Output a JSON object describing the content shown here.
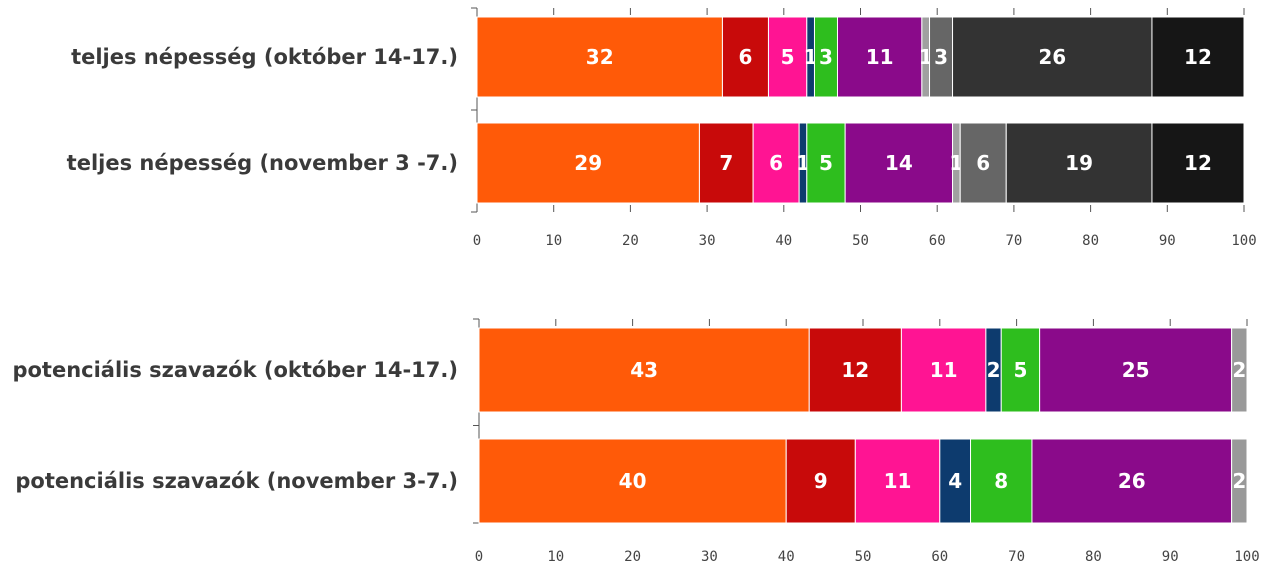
{
  "chart_data": [
    {
      "type": "bar",
      "orientation": "horizontal",
      "stacked": true,
      "xlim": [
        0,
        100
      ],
      "x_ticks": [
        "0",
        "10",
        "20",
        "30",
        "40",
        "50",
        "60",
        "70",
        "80",
        "90",
        "100"
      ],
      "categories": [
        "teljes népesség (október 14-17.)",
        "teljes népesség (november 3 -7.)"
      ],
      "segment_colors": [
        "#ff5a08",
        "#c80a0a",
        "#ff1493",
        "#0d3b6e",
        "#2ebe1e",
        "#8a0a8a",
        "#a0a0a0",
        "#666666",
        "#333333",
        "#161616"
      ],
      "rows": [
        {
          "values": [
            32,
            6,
            5,
            1,
            3,
            11,
            1,
            3,
            26,
            12
          ],
          "labels": [
            "32",
            "6",
            "5",
            "1",
            "3",
            "11",
            "1",
            "3",
            "26",
            "12"
          ]
        },
        {
          "values": [
            29,
            7,
            6,
            1,
            5,
            14,
            1,
            6,
            19,
            12
          ],
          "labels": [
            "29",
            "7",
            "6",
            "1",
            "5",
            "14",
            "1",
            "6",
            "19",
            "12"
          ]
        }
      ]
    },
    {
      "type": "bar",
      "orientation": "horizontal",
      "stacked": true,
      "xlim": [
        0,
        100
      ],
      "x_ticks": [
        "0",
        "10",
        "20",
        "30",
        "40",
        "50",
        "60",
        "70",
        "80",
        "90",
        "100"
      ],
      "categories": [
        "potenciális szavazók (október 14-17.)",
        "potenciális szavazók (november 3-7.)"
      ],
      "segment_colors": [
        "#ff5a08",
        "#c80a0a",
        "#ff1493",
        "#0d3b6e",
        "#2ebe1e",
        "#8a0a8a",
        "#999999"
      ],
      "rows": [
        {
          "values": [
            43,
            12,
            11,
            2,
            5,
            25,
            2
          ],
          "labels": [
            "43",
            "12",
            "11",
            "2",
            "5",
            "25",
            "2"
          ]
        },
        {
          "values": [
            40,
            9,
            11,
            4,
            8,
            26,
            2
          ],
          "labels": [
            "40",
            "9",
            "11",
            "4",
            "8",
            "26",
            "2"
          ]
        }
      ]
    }
  ]
}
